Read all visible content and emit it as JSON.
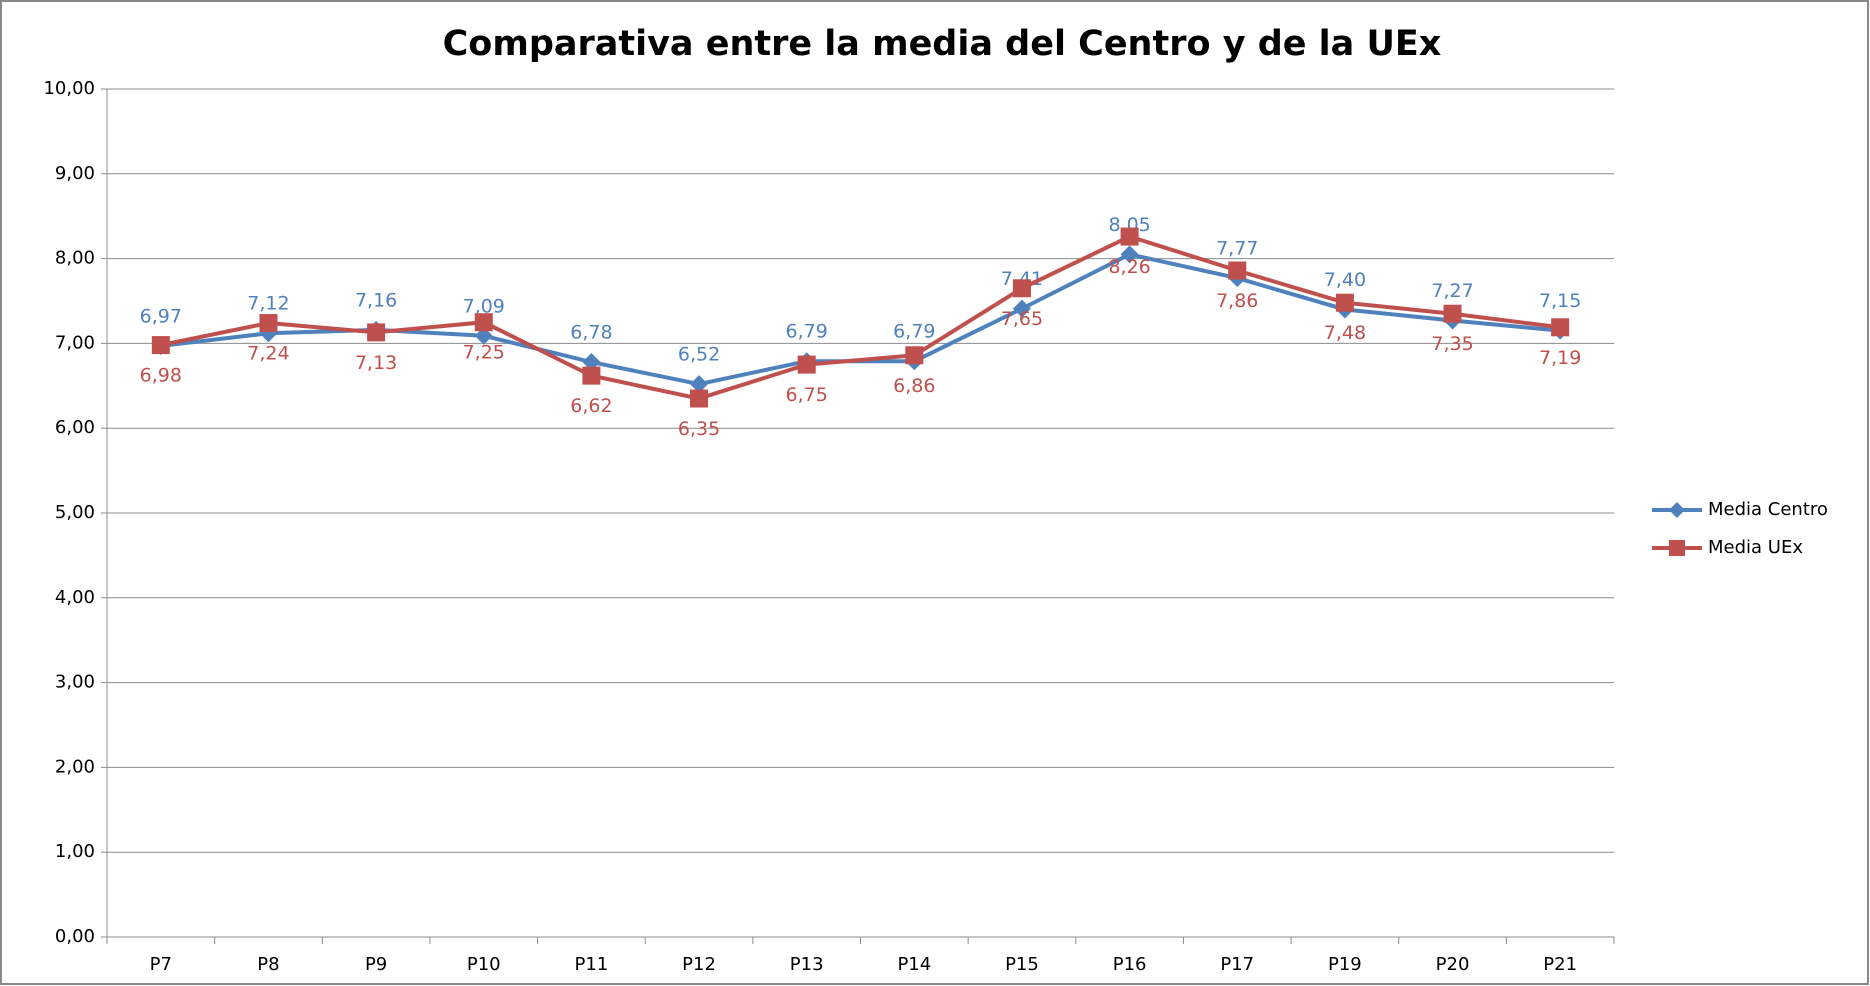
{
  "chart_data": {
    "type": "line",
    "title": "Comparativa entre la media del Centro y de la UEx",
    "categories": [
      "P7",
      "P8",
      "P9",
      "P10",
      "P11",
      "P12",
      "P13",
      "P14",
      "P15",
      "P16",
      "P17",
      "P19",
      "P20",
      "P21"
    ],
    "series": [
      {
        "name": "Media Centro",
        "color": "#4f81bd",
        "marker": "diamond",
        "values": [
          6.97,
          7.12,
          7.16,
          7.09,
          6.78,
          6.52,
          6.79,
          6.79,
          7.41,
          8.05,
          7.77,
          7.4,
          7.27,
          7.15
        ],
        "value_labels": [
          "6,97",
          "7,12",
          "7,16",
          "7,09",
          "6,78",
          "6,52",
          "6,79",
          "6,79",
          "7,41",
          "8,05",
          "7,77",
          "7,40",
          "7,27",
          "7,15"
        ]
      },
      {
        "name": "Media UEx",
        "color": "#c0504d",
        "marker": "square",
        "values": [
          6.98,
          7.24,
          7.13,
          7.25,
          6.62,
          6.35,
          6.75,
          6.86,
          7.65,
          8.26,
          7.86,
          7.48,
          7.35,
          7.19
        ],
        "value_labels": [
          "6,98",
          "7,24",
          "7,13",
          "7,25",
          "6,62",
          "6,35",
          "6,75",
          "6,86",
          "7,65",
          "8,26",
          "7,86",
          "7,48",
          "7,35",
          "7,19"
        ]
      }
    ],
    "ylim": [
      0,
      10
    ],
    "yticks": [
      {
        "value": 0,
        "label": "0,00"
      },
      {
        "value": 1,
        "label": "1,00"
      },
      {
        "value": 2,
        "label": "2,00"
      },
      {
        "value": 3,
        "label": "3,00"
      },
      {
        "value": 4,
        "label": "4,00"
      },
      {
        "value": 5,
        "label": "5,00"
      },
      {
        "value": 6,
        "label": "6,00"
      },
      {
        "value": 7,
        "label": "7,00"
      },
      {
        "value": 8,
        "label": "8,00"
      },
      {
        "value": 9,
        "label": "9,00"
      },
      {
        "value": 10,
        "label": "10,00"
      }
    ],
    "grid": true,
    "legend": "right"
  }
}
